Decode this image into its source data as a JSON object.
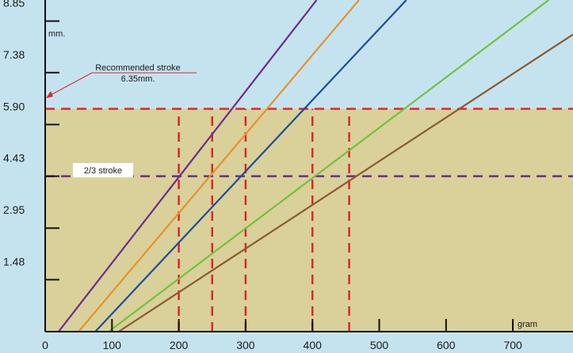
{
  "chart_data": {
    "type": "line",
    "xlabel": "gram",
    "ylabel": "mm.",
    "xlim": [
      0,
      790
    ],
    "ylim": [
      0,
      9.45
    ],
    "x_ticks": [
      0,
      100,
      200,
      300,
      400,
      500,
      600,
      700
    ],
    "x_tick_labels": [
      "0",
      "100",
      "200",
      "300",
      "400",
      "500",
      "600",
      "700"
    ],
    "y_ticks": [
      1.48,
      2.95,
      4.43,
      5.9,
      7.38,
      8.85
    ],
    "y_tick_labels": [
      "1.48",
      "2.95",
      "4.43",
      "5.90",
      "7.38",
      "8.85"
    ],
    "series": [
      {
        "color": "#6a2c8e",
        "points": [
          [
            20,
            0
          ],
          [
            200,
            4.43
          ],
          [
            298,
            6.8
          ]
        ]
      },
      {
        "color": "#e8912a",
        "points": [
          [
            50,
            0
          ],
          [
            250,
            4.43
          ],
          [
            352,
            6.8
          ]
        ]
      },
      {
        "color": "#1d4e9a",
        "points": [
          [
            75,
            0
          ],
          [
            300,
            4.43
          ],
          [
            410,
            6.8
          ]
        ]
      },
      {
        "color": "#72c23a",
        "points": [
          [
            95,
            0
          ],
          [
            400,
            4.43
          ],
          [
            555,
            6.6
          ]
        ]
      },
      {
        "color": "#8b5a2e",
        "points": [
          [
            110,
            0
          ],
          [
            455,
            4.43
          ],
          [
            620,
            6.35
          ]
        ]
      }
    ],
    "hlines": [
      {
        "y": 6.35,
        "color": "#e0252a",
        "label": "Recommended stroke",
        "sublabel": "6.35mm."
      },
      {
        "y": 4.43,
        "color": "#6a2c8e",
        "label": "2/3 stroke"
      }
    ],
    "vlines": [
      {
        "x": 200,
        "color": "#e0252a"
      },
      {
        "x": 250,
        "color": "#e0252a"
      },
      {
        "x": 300,
        "color": "#e0252a"
      },
      {
        "x": 400,
        "color": "#e0252a"
      },
      {
        "x": 455,
        "color": "#e0252a"
      }
    ],
    "shaded_region": {
      "color": "#d9d199",
      "y_max": 6.35
    },
    "background": "#c5e3ef",
    "axis_color": "#111111",
    "grid": false
  }
}
